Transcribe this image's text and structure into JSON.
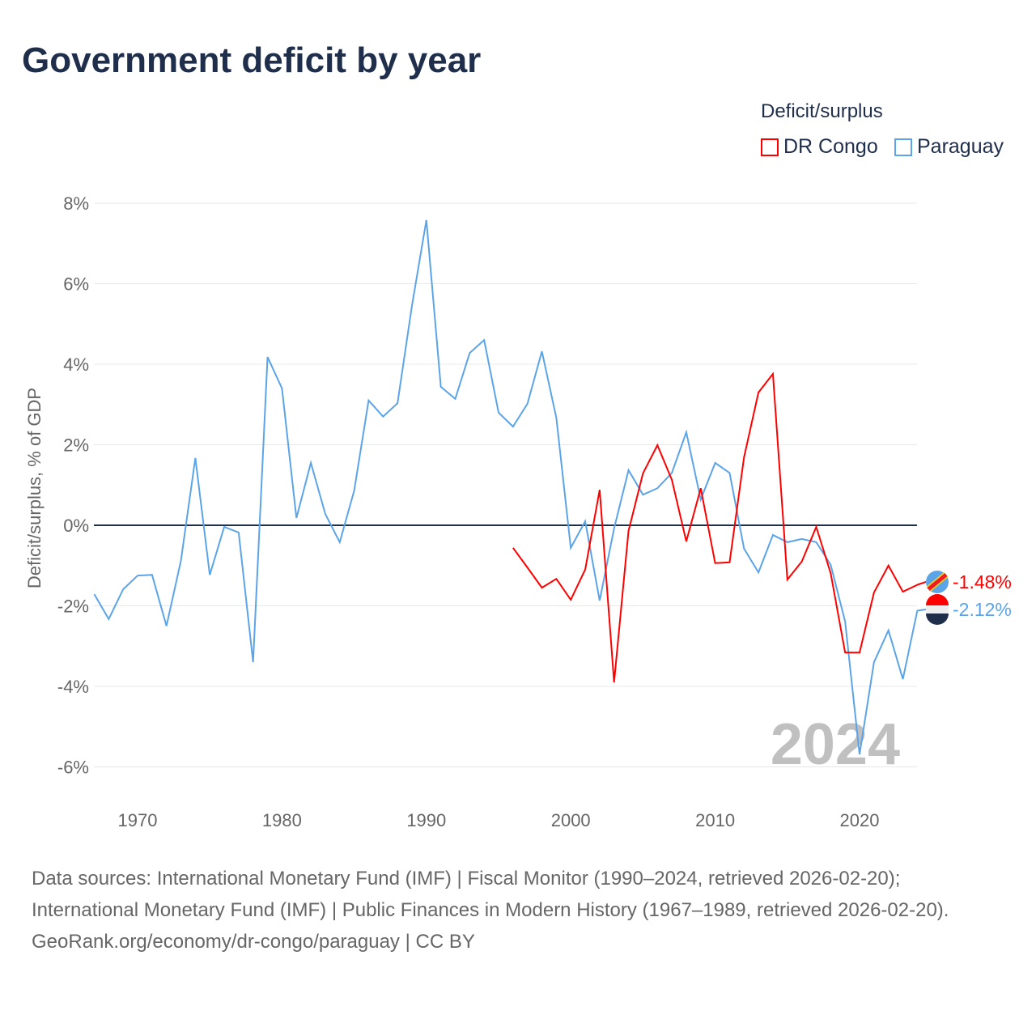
{
  "title": "Government deficit by year",
  "source_text": "Data sources: International Monetary Fund (IMF) | Fiscal Monitor (1990–2024, retrieved 2026-02-20); International Monetary Fund (IMF) | Public Finances in Modern History (1967–1989, retrieved 2026-02-20).",
  "credit": "GeoRank.org/economy/dr-congo/paraguay | CC BY",
  "chart_data": {
    "type": "line",
    "title": "Government deficit by year",
    "ylabel": "Deficit/surplus, % of GDP",
    "xlabel": "",
    "ylim": [
      -7,
      8.5
    ],
    "xlim": [
      1967,
      2024
    ],
    "yticks": [
      {
        "v": 8,
        "label": "8%"
      },
      {
        "v": 6,
        "label": "6%"
      },
      {
        "v": 4,
        "label": "4%"
      },
      {
        "v": 2,
        "label": "2%"
      },
      {
        "v": 0,
        "label": "0%"
      },
      {
        "v": -2,
        "label": "-2%"
      },
      {
        "v": -4,
        "label": "-4%"
      },
      {
        "v": -6,
        "label": "-6%"
      }
    ],
    "xticks": [
      {
        "v": 1970,
        "label": "1970"
      },
      {
        "v": 1980,
        "label": "1980"
      },
      {
        "v": 1990,
        "label": "1990"
      },
      {
        "v": 2000,
        "label": "2000"
      },
      {
        "v": 2010,
        "label": "2010"
      },
      {
        "v": 2020,
        "label": "2020"
      }
    ],
    "legend_title": "Deficit/surplus",
    "legend_position": "top-right",
    "year_watermark": "2024",
    "series": [
      {
        "name": "DR Congo",
        "color": "#ff0000",
        "end_label": "-1.48%",
        "x_start": 1996,
        "values": [
          -0.56,
          -1.05,
          -1.55,
          -1.33,
          -1.85,
          -1.1,
          0.88,
          -3.9,
          -0.14,
          1.29,
          1.99,
          1.13,
          -0.4,
          0.92,
          -0.94,
          -0.92,
          1.69,
          3.3,
          3.76,
          -1.35,
          -0.9,
          -0.04,
          -1.19,
          -3.16,
          -3.16,
          -1.67,
          -1.0,
          -1.65,
          -1.48
        ]
      },
      {
        "name": "Paraguay",
        "color": "#5ba4e8",
        "end_label": "-2.12%",
        "x_start": 1967,
        "values": [
          -1.71,
          -2.33,
          -1.59,
          -1.25,
          -1.23,
          -2.5,
          -0.88,
          1.67,
          -1.23,
          -0.04,
          -0.18,
          -3.4,
          4.18,
          3.4,
          0.18,
          1.55,
          0.28,
          -0.42,
          0.86,
          3.1,
          2.7,
          3.03,
          5.45,
          7.58,
          3.44,
          3.14,
          4.28,
          4.6,
          2.8,
          2.45,
          3.02,
          4.32,
          2.67,
          -0.56,
          0.1,
          -1.87,
          -0.08,
          1.37,
          0.76,
          0.92,
          1.3,
          2.31,
          0.64,
          1.55,
          1.3,
          -0.58,
          -1.17,
          -0.24,
          -0.42,
          -0.34,
          -0.42,
          -0.98,
          -2.39,
          -5.69,
          -3.4,
          -2.61,
          -3.82,
          -2.12
        ]
      }
    ]
  }
}
